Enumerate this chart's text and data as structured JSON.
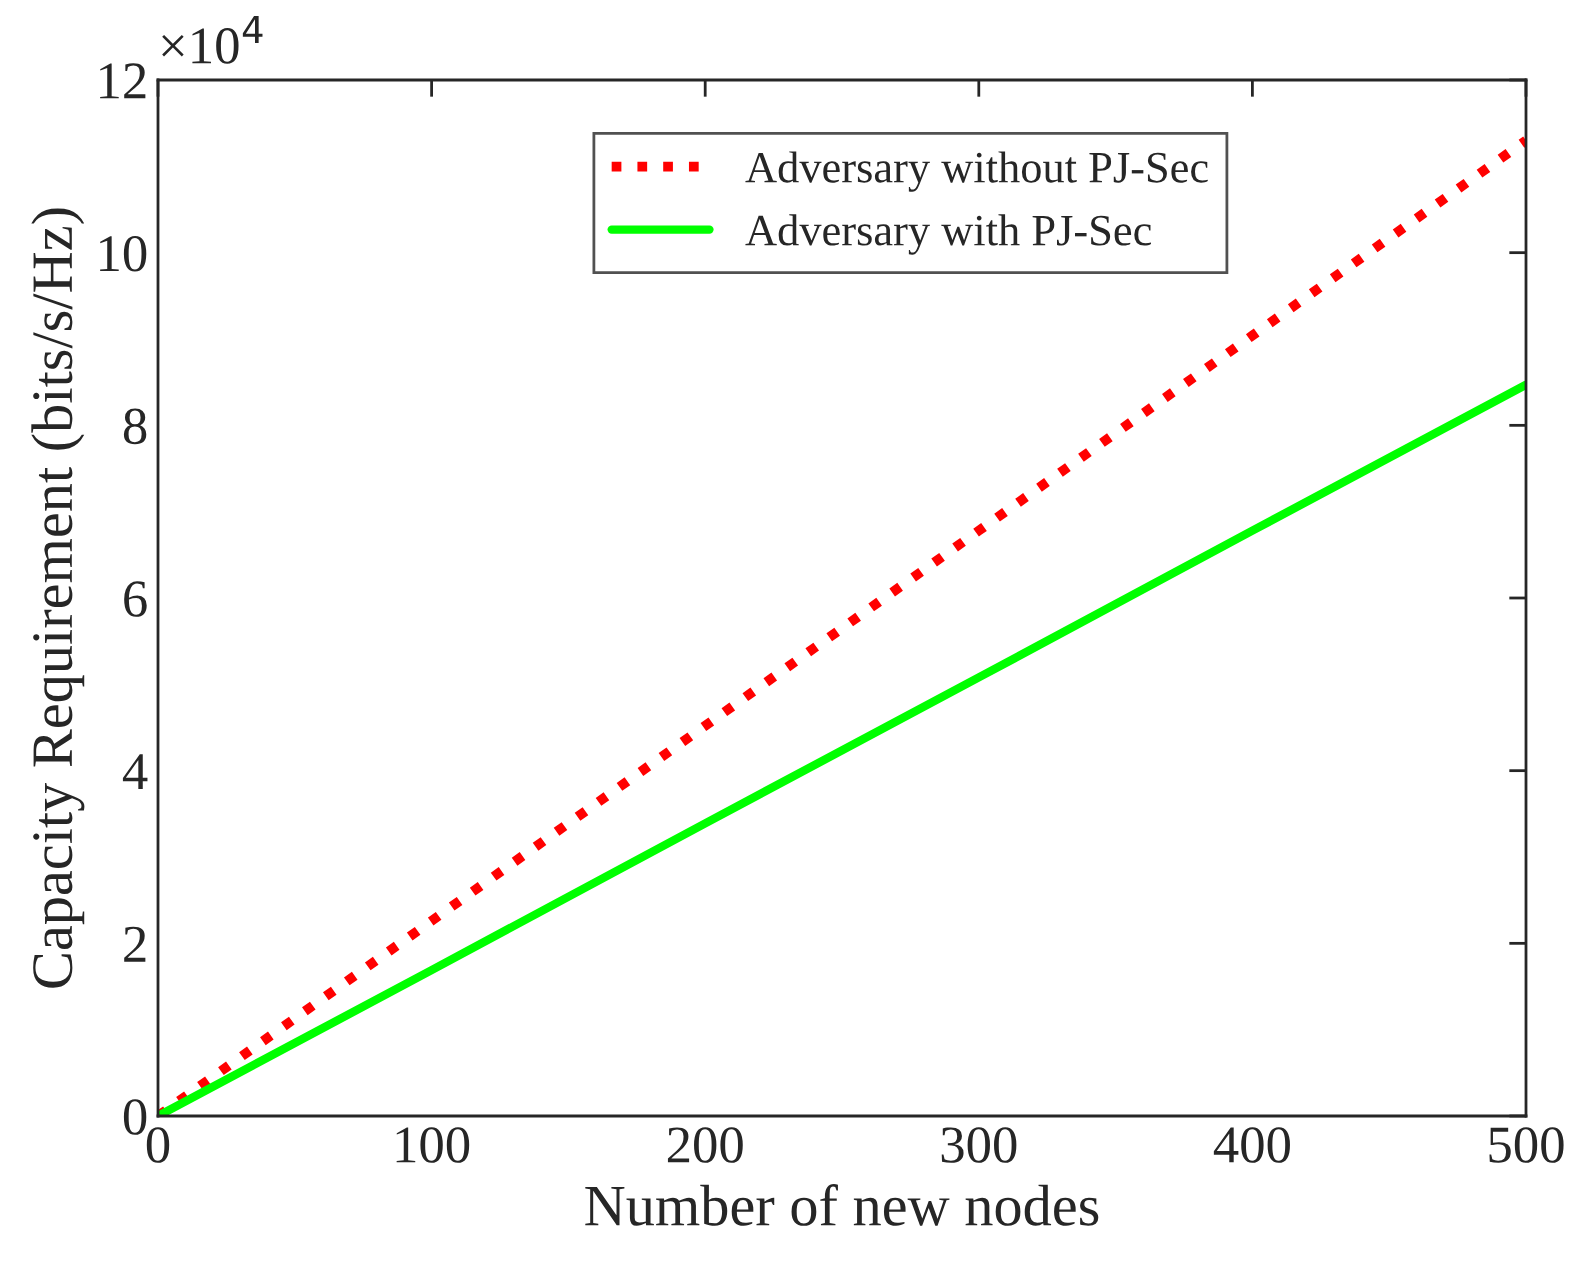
{
  "chart_data": {
    "type": "line",
    "xlabel": "Number of new nodes",
    "ylabel": "Capacity Requirement (bits/s/Hz)",
    "x": [
      0,
      100,
      200,
      300,
      400,
      500
    ],
    "series": [
      {
        "name": "Adversary without PJ-Sec",
        "color": "#ff0000",
        "line_style": "dotted",
        "values": [
          0,
          2.26,
          4.52,
          6.78,
          9.04,
          11.3
        ]
      },
      {
        "name": "Adversary with PJ-Sec",
        "color": "#00ff00",
        "line_style": "solid",
        "values": [
          0,
          1.69,
          3.39,
          5.08,
          6.78,
          8.47
        ]
      }
    ],
    "xlim": [
      0,
      500
    ],
    "xticks": [
      0,
      100,
      200,
      300,
      400,
      500
    ],
    "ylim": [
      0,
      12
    ],
    "yticks": [
      0,
      2,
      4,
      6,
      8,
      10,
      12
    ],
    "annotations": [
      "×10$^{4}$"
    ],
    "legend": "top",
    "grid": false,
    "marker": "none"
  }
}
